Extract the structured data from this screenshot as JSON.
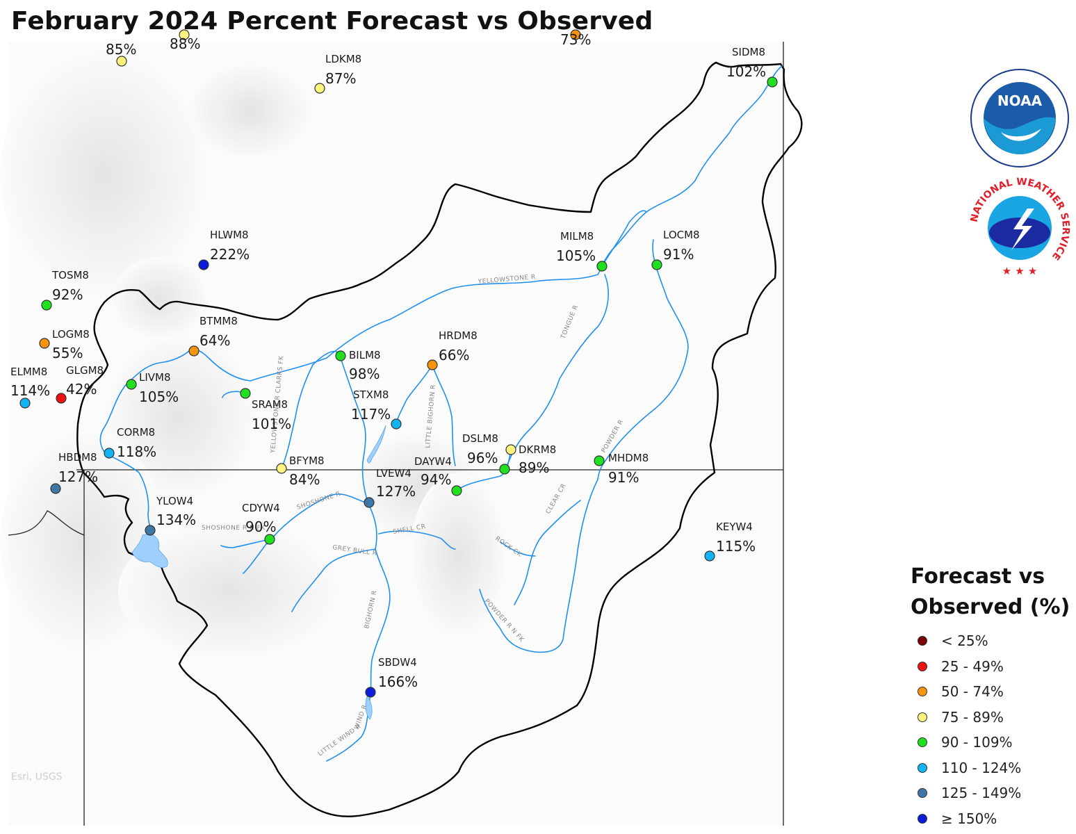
{
  "title": "February 2024 Percent Forecast vs Observed",
  "attribution": "Esri, USGS",
  "logos": {
    "noaa": "NOAA",
    "nws": "NATIONAL WEATHER SERVICE"
  },
  "legend": {
    "title_line1": "Forecast vs",
    "title_line2": "Observed (%)",
    "items": [
      {
        "label": "< 25%",
        "color": "#7a0000"
      },
      {
        "label": "25 - 49%",
        "color": "#ee1111"
      },
      {
        "label": "50 - 74%",
        "color": "#f7940f"
      },
      {
        "label": "75 - 89%",
        "color": "#fdf57e"
      },
      {
        "label": "90 - 109%",
        "color": "#21e01f"
      },
      {
        "label": "110 - 124%",
        "color": "#12b4f3"
      },
      {
        "label": "125 - 149%",
        "color": "#3f76a8"
      },
      {
        "label": "≥ 150%",
        "color": "#0b1bd9"
      }
    ]
  },
  "stations": [
    {
      "id": "",
      "pct": "85%",
      "cls": "75 - 89%"
    },
    {
      "id": "",
      "pct": "88%",
      "cls": "75 - 89%"
    },
    {
      "id": "",
      "pct": "73%",
      "cls": "50 - 74%"
    },
    {
      "id": "LDKM8",
      "pct": "87%",
      "cls": "75 - 89%"
    },
    {
      "id": "SIDM8",
      "pct": "102%",
      "cls": "90 - 109%"
    },
    {
      "id": "HLWM8",
      "pct": "222%",
      "cls": "≥ 150%"
    },
    {
      "id": "MILM8",
      "pct": "105%",
      "cls": "90 - 109%"
    },
    {
      "id": "LOCM8",
      "pct": "91%",
      "cls": "90 - 109%"
    },
    {
      "id": "TOSM8",
      "pct": "92%",
      "cls": "90 - 109%"
    },
    {
      "id": "LOGM8",
      "pct": "55%",
      "cls": "50 - 74%"
    },
    {
      "id": "BTMM8",
      "pct": "64%",
      "cls": "50 - 74%"
    },
    {
      "id": "HRDM8",
      "pct": "66%",
      "cls": "50 - 74%"
    },
    {
      "id": "BILM8",
      "pct": "98%",
      "cls": "90 - 109%"
    },
    {
      "id": "ELMM8",
      "pct": "114%",
      "cls": "110 - 124%"
    },
    {
      "id": "GLGM8",
      "pct": "42%",
      "cls": "25 - 49%"
    },
    {
      "id": "LIVM8",
      "pct": "105%",
      "cls": "90 - 109%"
    },
    {
      "id": "SRAM8",
      "pct": "101%",
      "cls": "90 - 109%"
    },
    {
      "id": "STXM8",
      "pct": "117%",
      "cls": "110 - 124%"
    },
    {
      "id": "CORM8",
      "pct": "118%",
      "cls": "110 - 124%"
    },
    {
      "id": "DSLM8",
      "pct": "96%",
      "cls": "90 - 109%"
    },
    {
      "id": "DKRM8",
      "pct": "89%",
      "cls": "75 - 89%"
    },
    {
      "id": "HBDM8",
      "pct": "127%",
      "cls": "125 - 149%"
    },
    {
      "id": "BFYM8",
      "pct": "84%",
      "cls": "75 - 89%"
    },
    {
      "id": "DAYW4",
      "pct": "94%",
      "cls": "90 - 109%"
    },
    {
      "id": "MHDM8",
      "pct": "91%",
      "cls": "90 - 109%"
    },
    {
      "id": "LVEW4",
      "pct": "127%",
      "cls": "125 - 149%"
    },
    {
      "id": "YLOW4",
      "pct": "134%",
      "cls": "125 - 149%"
    },
    {
      "id": "CDYW4",
      "pct": "90%",
      "cls": "90 - 109%"
    },
    {
      "id": "KEYW4",
      "pct": "115%",
      "cls": "110 - 124%"
    },
    {
      "id": "SBDW4",
      "pct": "166%",
      "cls": "≥ 150%"
    }
  ],
  "rivers": [
    "YELLOWSTONE R",
    "TONGUE R",
    "POWDER R",
    "BIGHORN R",
    "LITTLE BIGHORN R",
    "YELLOWSTONE R CLARKS FK",
    "SHOSHONE R",
    "SHOSHONE R N FK",
    "GREY BULL R",
    "SHELL CR",
    "CLEAR CR",
    "ROCK CK",
    "POWDER R N FK",
    "WIND R",
    "LITTLE WIND R"
  ]
}
